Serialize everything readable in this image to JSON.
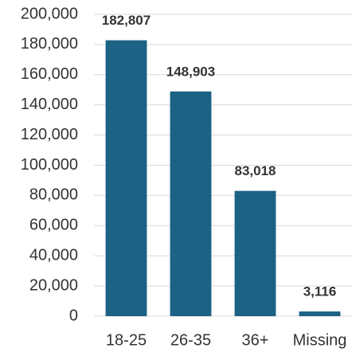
{
  "chart_data": {
    "type": "bar",
    "categories": [
      "18-25",
      "26-35",
      "36+",
      "Missing"
    ],
    "values": [
      182807,
      148903,
      83018,
      3116
    ],
    "value_labels": [
      "182,807",
      "148,903",
      "83,018",
      "3,116"
    ],
    "color": "#1b6285",
    "ylim": [
      0,
      200000
    ],
    "yticks": [
      0,
      {
        "value": 20000,
        "label": "20,000"
      },
      {
        "value": 40000,
        "label": "40,000"
      },
      {
        "value": 60000,
        "label": "60,000"
      },
      {
        "value": 80000,
        "label": "80,000"
      },
      {
        "value": 100000,
        "label": "100,000"
      },
      {
        "value": 120000,
        "label": "120,000"
      },
      {
        "value": 140000,
        "label": "140,000"
      },
      {
        "value": 160000,
        "label": "160,000"
      },
      {
        "value": 180000,
        "label": "180,000"
      },
      {
        "value": 200000,
        "label": "200,000"
      }
    ],
    "grid": true
  }
}
